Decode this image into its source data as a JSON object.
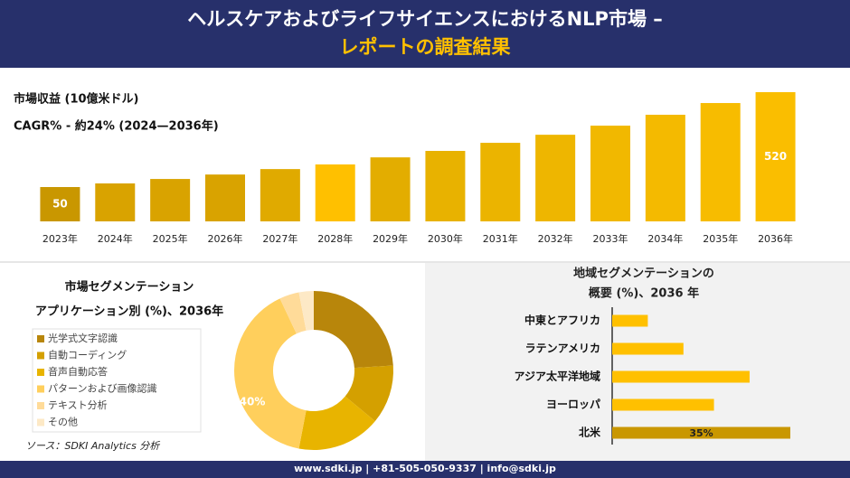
{
  "header": {
    "title_line1": "ヘルスケアおよびライフサイエンスにおけるNLP市場 –",
    "title_line2": "レポートの調査結果"
  },
  "chart_data": [
    {
      "type": "bar",
      "title": "市場収益 (10億米ドル)",
      "subtitle": "CAGR% - 約24% (2024—2036年)",
      "categories": [
        "2023年",
        "2024年",
        "2025年",
        "2026年",
        "2027年",
        "2028年",
        "2029年",
        "2030年",
        "2031年",
        "2032年",
        "2033年",
        "2034年",
        "2035年",
        "2036年"
      ],
      "values": [
        50,
        68,
        90,
        112,
        139,
        162,
        197,
        229,
        269,
        309,
        354,
        408,
        466,
        520
      ],
      "value_labels": [
        "50",
        null,
        null,
        null,
        null,
        null,
        null,
        null,
        null,
        null,
        null,
        null,
        null,
        "520"
      ],
      "colors": [
        "#c99700",
        "#d9a300",
        "#d9a300",
        "#d9a300",
        "#e0aa00",
        "#ffc000",
        "#e3ad00",
        "#e8b200",
        "#ebb400",
        "#eeb600",
        "#f1b800",
        "#f4ba00",
        "#f7bc00",
        "#fabe00"
      ],
      "ylim": [
        -120,
        540
      ]
    },
    {
      "type": "pie",
      "donut": true,
      "title": "市場セグメンテーション",
      "subtitle": "アプリケーション別 (%)、2036年",
      "categories": [
        "光学式文字認識",
        "自動コーディング",
        "音声自動応答",
        "パターンおよび画像認識",
        "テキスト分析",
        "その他"
      ],
      "values": [
        24,
        12,
        17,
        40,
        4,
        3
      ],
      "value_labels": [
        null,
        null,
        null,
        "40%",
        null,
        null
      ],
      "colors": [
        "#b8860b",
        "#d4a000",
        "#e8b400",
        "#ffcf5c",
        "#ffdb99",
        "#fde9c6"
      ],
      "source": "ソース：SDKI Analytics 分析"
    },
    {
      "type": "bar",
      "orientation": "horizontal",
      "title": "地域セグメンテーションの",
      "subtitle": "概要 (%)、2036 年",
      "categories": [
        "中東とアフリカ",
        "ラテンアメリカ",
        "アジア太平洋地域",
        "ヨーロッパ",
        "北米"
      ],
      "values": [
        7,
        14,
        27,
        20,
        35
      ],
      "value_labels": [
        null,
        null,
        null,
        null,
        "35%"
      ],
      "colors": [
        "#ffc000",
        "#ffc000",
        "#ffc000",
        "#ffc000",
        "#c99700"
      ],
      "xlim": [
        0,
        35
      ]
    }
  ],
  "footer": {
    "contact": "www.sdki.jp | +81-505-050-9337 | info@sdki.jp"
  }
}
